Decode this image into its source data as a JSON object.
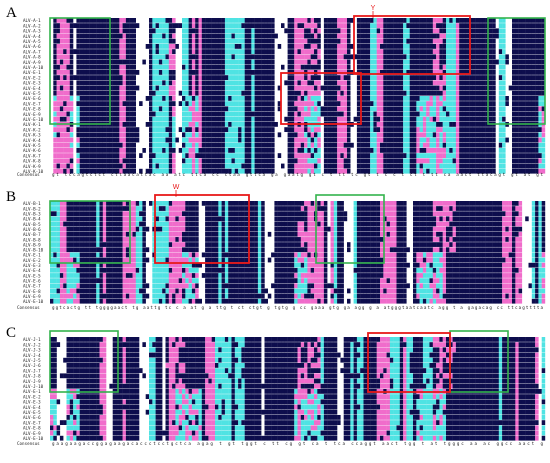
{
  "panels": [
    {
      "letter": "A",
      "y0": 18,
      "rows": [
        "ALV-A-1",
        "ALV-A-2",
        "ALV-A-3",
        "ALV-A-4",
        "ALV-A-5",
        "ALV-A-6",
        "ALV-A-7",
        "ALV-A-8",
        "ALV-A-9",
        "ALV-A-10",
        "ALV-E-1",
        "ALV-E-2",
        "ALV-E-3",
        "ALV-E-4",
        "ALV-E-5",
        "ALV-E-6",
        "ALV-E-7",
        "ALV-E-8",
        "ALV-E-9",
        "ALV-E-10",
        "ALV-K-1",
        "ALV-K-2",
        "ALV-K-3",
        "ALV-K-4",
        "ALV-K-5",
        "ALV-K-6",
        "ALV-K-7",
        "ALV-K-8",
        "ALV-K-9",
        "ALV-K-10"
      ],
      "consensus_label": "Consensus",
      "consensus": "gt tccagtctct cttaacattac aa atc ttca cc ctaa gttca ga gaatg gt c t  tt  tc  gt  t  c  c  t  ct  t  tt  ca  aact ttacagt gt at gt",
      "marker": "Y"
    },
    {
      "letter": "B",
      "y0": 200,
      "rows": [
        "ALV-B-1",
        "ALV-B-2",
        "ALV-B-3",
        "ALV-B-4",
        "ALV-B-5",
        "ALV-B-6",
        "ALV-B-7",
        "ALV-B-8",
        "ALV-B-9",
        "ALV-B-10",
        "ALV-E-1",
        "ALV-E-2",
        "ALV-E-3",
        "ALV-E-4",
        "ALV-E-5",
        "ALV-E-6",
        "ALV-E-7",
        "ALV-E-8",
        "ALV-E-9",
        "ALV-E-10"
      ],
      "consensus_label": "Consensus",
      "consensus": "ggtcactg tt tggggaact tg aattg tc c a at g a ttg  t  ct ctgt g tgtg g  cc gaaa gtg ga agg g a atgggtaatcaatc agg  t a gagacag cc ttcagtttta",
      "marker": "W"
    },
    {
      "letter": "C",
      "y0": 336,
      "rows": [
        "ALV-J-1",
        "ALV-J-2",
        "ALV-J-3",
        "ALV-J-4",
        "ALV-J-5",
        "ALV-J-6",
        "ALV-J-7",
        "ALV-J-8",
        "ALV-J-9",
        "ALV-J-10",
        "ALV-E-1",
        "ALV-E-2",
        "ALV-E-3",
        "ALV-E-4",
        "ALV-E-5",
        "ALV-E-6",
        "ALV-E-7",
        "ALV-E-8",
        "ALV-E-9",
        "ALV-E-10"
      ],
      "consensus_label": "Consensus",
      "consensus": "gaagaagaccggagaagacaccctcctgctca agag  t  gt tggt c tt  cg  gt  ca  t  tca ccaggt aact tgg t at tgggc aa  ac ggcc aact g",
      "marker": ""
    }
  ],
  "colors": {
    "identical": "#0d0d4d",
    "high": "#f06ccb",
    "mid": "#4fe3e3",
    "low": "#ffffff",
    "box_red": "#e8191a",
    "box_green": "#33b34d",
    "marker_red": "#e8191a"
  }
}
